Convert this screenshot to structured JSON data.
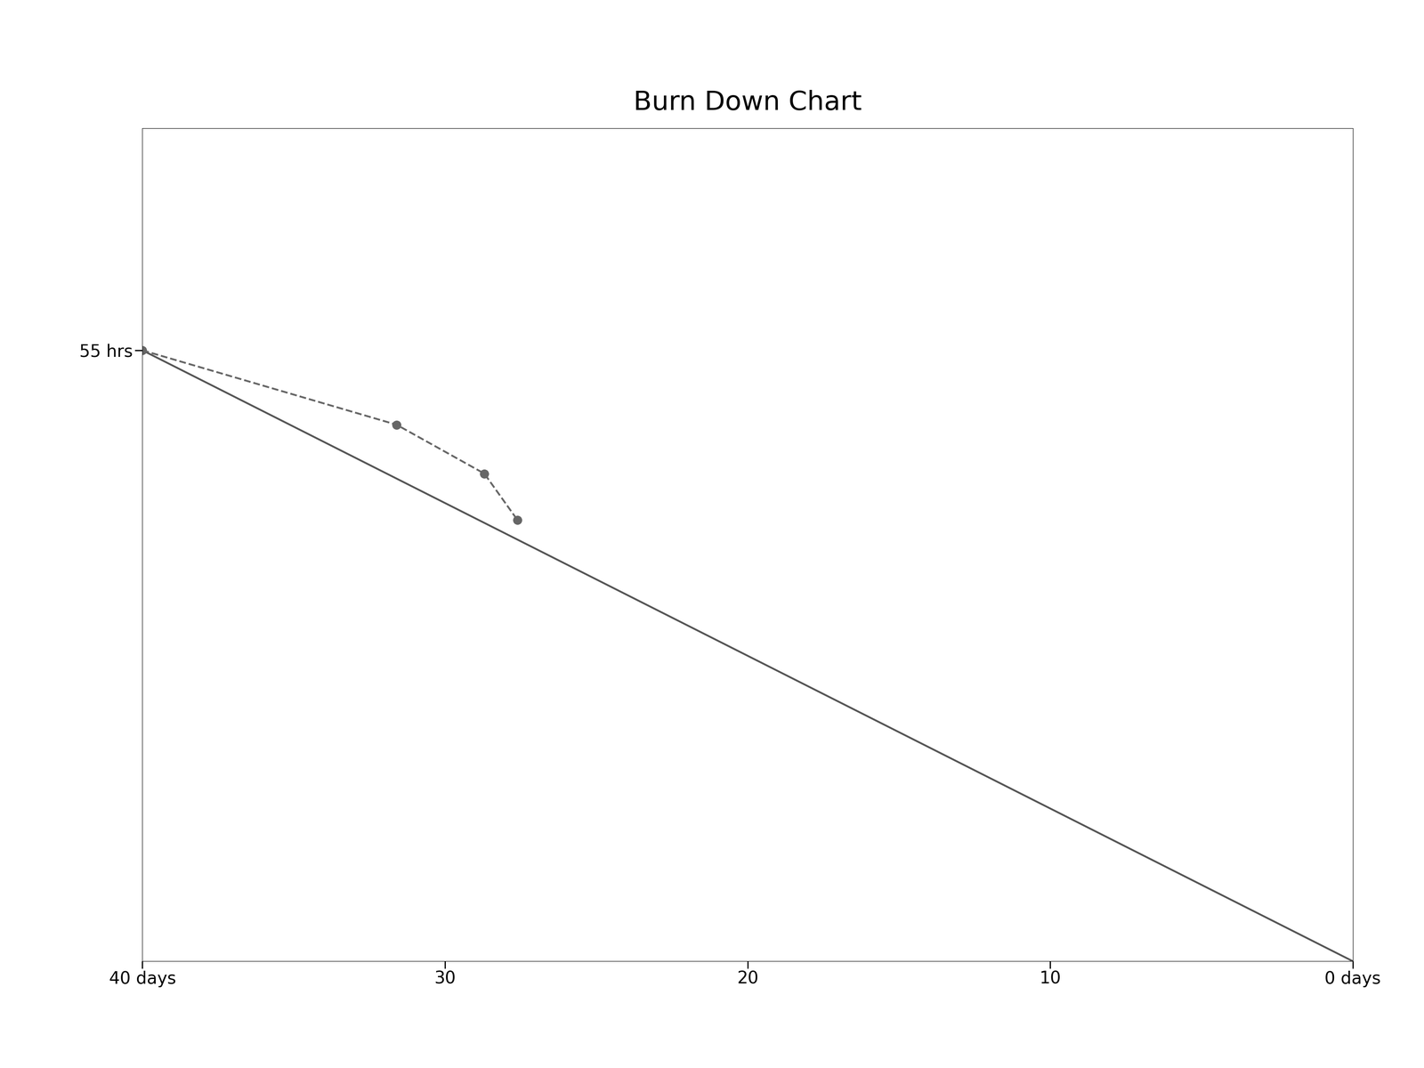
{
  "chart_data": {
    "type": "line",
    "title": "Burn Down Chart",
    "xlim": [
      40,
      0
    ],
    "xticks": [
      {
        "value": 40,
        "label": "40 days"
      },
      30,
      20,
      10,
      {
        "value": 0,
        "label": "0 days"
      }
    ],
    "ylim": [
      0,
      75
    ],
    "yticks": [
      {
        "value": 55,
        "label": "55 hrs"
      }
    ],
    "grid": false,
    "series": [
      {
        "x": [
          40,
          0
        ],
        "values": [
          55,
          0
        ],
        "color": "#555555",
        "line_style": "solid",
        "marker": "none"
      },
      {
        "x": [
          40,
          31.6,
          28.7,
          27.6
        ],
        "values": [
          55,
          48.3,
          43.9,
          39.7
        ],
        "color": "#666666",
        "line_style": "dashed",
        "marker": "o"
      }
    ]
  }
}
